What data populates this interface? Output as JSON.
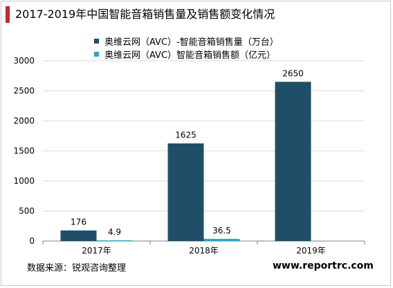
{
  "title": "2017-2019年中国智能音箱销售量及销售额变化情况",
  "source": "数据来源：锐观咨询整理",
  "website": "www.reportrc.com",
  "colors": {
    "accent": "#c0282e",
    "series1": "#1f4e68",
    "series2": "#29a3c6"
  },
  "chart_data": {
    "type": "bar",
    "categories": [
      "2017年",
      "2018年",
      "2019年"
    ],
    "series": [
      {
        "name": "奥维云网（AVC）-智能音箱销售量（万台）",
        "values": [
          176,
          1625,
          2650
        ],
        "labels": [
          "176",
          "1625",
          "2650"
        ]
      },
      {
        "name": "奥维云网（AVC）智能音箱销售额（亿元）",
        "values": [
          4.9,
          36.5,
          null
        ],
        "labels": [
          "4.9",
          "36.5",
          null
        ]
      }
    ],
    "ylim": [
      0,
      3000
    ],
    "yticks": [
      0,
      500,
      1000,
      1500,
      2000,
      2500,
      3000
    ],
    "grid": true,
    "legend": "top"
  }
}
